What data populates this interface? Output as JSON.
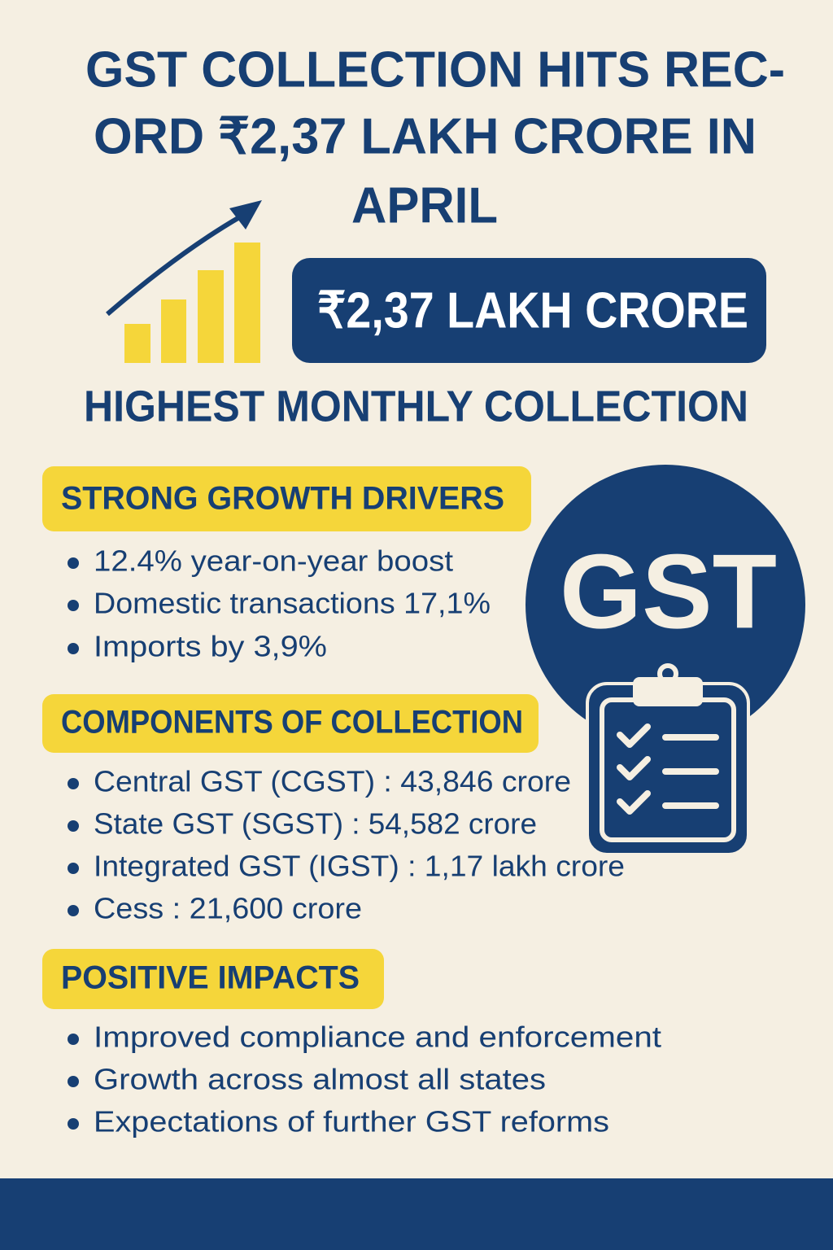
{
  "header": {
    "title_lines": [
      "GST COLLECTION HITS REC-",
      "ORD ₹2,37 LAKH CRORE IN",
      "APRIL"
    ],
    "badge": "₹2,37 LAKH CRORE",
    "subtitle": "HIGHEST MONTHLY COLLECTION"
  },
  "logo_text": "GST",
  "sections": [
    {
      "heading": "STRONG GROWTH DRIVERS",
      "items": [
        "12.4% year-on-year boost",
        "Domestic transactions 17,1%",
        "Imports by 3,9%"
      ]
    },
    {
      "heading": "COMPONENTS OF COLLECTION",
      "items": [
        "Central GST (CGST) : 43,846 crore",
        "State GST (SGST) : 54,582 crore",
        "Integrated GST (IGST) : 1,17 lakh crore",
        "Cess : 21,600 crore"
      ]
    },
    {
      "heading": "POSITIVE IMPACTS",
      "items": [
        "Improved compliance and enforcement",
        "Growth across almost all states",
        "Expectations of further GST reforms"
      ]
    }
  ]
}
